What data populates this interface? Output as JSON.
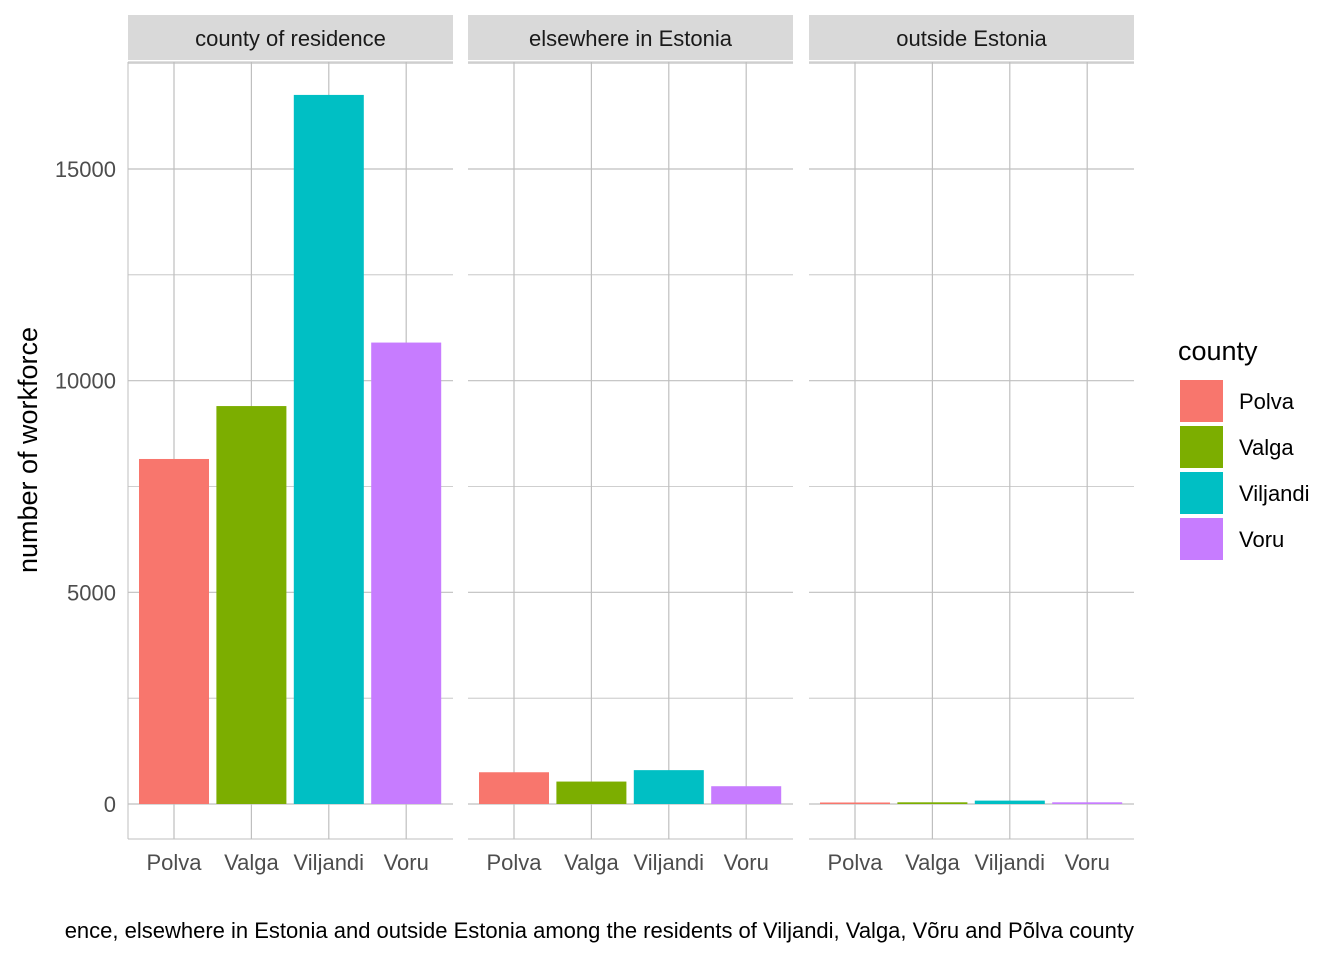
{
  "chart_data": {
    "type": "bar",
    "facets": [
      "county of residence",
      "elsewhere in Estonia",
      "outside Estonia"
    ],
    "categories": [
      "Polva",
      "Valga",
      "Viljandi",
      "Voru"
    ],
    "series": [
      {
        "facet": "county of residence",
        "values": [
          8150,
          9400,
          16750,
          10900
        ]
      },
      {
        "facet": "elsewhere in Estonia",
        "values": [
          750,
          530,
          800,
          420
        ]
      },
      {
        "facet": "outside Estonia",
        "values": [
          20,
          40,
          80,
          40
        ]
      }
    ],
    "ylabel": "number of workforce",
    "xlabel": "",
    "ylim": [
      -830,
      17500
    ],
    "y_ticks": [
      0,
      5000,
      10000,
      15000
    ],
    "y_ticks_label": [
      "0",
      "5000",
      "10000",
      "15000"
    ],
    "grid": true,
    "legend": {
      "title": "county",
      "position": "right",
      "entries": [
        "Polva",
        "Valga",
        "Viljandi",
        "Voru"
      ]
    },
    "colors": {
      "Polva": "#F8766D",
      "Valga": "#7CAE00",
      "Viljandi": "#00BFC4",
      "Voru": "#C77CFF",
      "strip": "#D9D9D9",
      "grid": "#BFBFBF"
    },
    "caption": "ence, elsewhere in Estonia and outside Estonia among the residents of Viljandi, Valga, Võru and Põlva county"
  }
}
